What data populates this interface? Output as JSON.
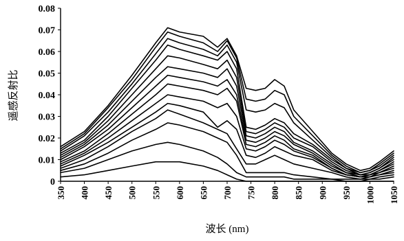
{
  "chart_data": {
    "type": "line",
    "title": "",
    "xlabel": "波长 (nm)",
    "ylabel": "遥感反射比",
    "xlim": [
      350,
      1050
    ],
    "ylim": [
      0,
      0.08
    ],
    "xticks": [
      "350",
      "400",
      "450",
      "500",
      "550",
      "600",
      "650",
      "700",
      "750",
      "800",
      "850",
      "900",
      "950",
      "1000",
      "1050"
    ],
    "yticks": [
      "0",
      "0.01",
      "0.02",
      "0.03",
      "0.04",
      "0.05",
      "0.06",
      "0.07",
      "0.08"
    ],
    "grid": false,
    "legend": "none",
    "colors": {
      "line": "#000000",
      "axis": "#000000"
    },
    "x": [
      350,
      400,
      450,
      500,
      550,
      575,
      600,
      650,
      680,
      700,
      720,
      740,
      760,
      780,
      800,
      820,
      840,
      880,
      920,
      950,
      980,
      1000,
      1020,
      1050
    ],
    "series": [
      {
        "values": [
          0.016,
          0.023,
          0.035,
          0.049,
          0.064,
          0.071,
          0.069,
          0.067,
          0.062,
          0.066,
          0.058,
          0.043,
          0.042,
          0.043,
          0.047,
          0.044,
          0.033,
          0.023,
          0.013,
          0.008,
          0.005,
          0.006,
          0.009,
          0.014
        ]
      },
      {
        "values": [
          0.015,
          0.022,
          0.034,
          0.047,
          0.062,
          0.069,
          0.067,
          0.064,
          0.06,
          0.065,
          0.057,
          0.038,
          0.037,
          0.038,
          0.042,
          0.04,
          0.03,
          0.021,
          0.012,
          0.007,
          0.004,
          0.005,
          0.008,
          0.013
        ]
      },
      {
        "values": [
          0.014,
          0.021,
          0.032,
          0.045,
          0.059,
          0.066,
          0.064,
          0.061,
          0.058,
          0.063,
          0.055,
          0.033,
          0.032,
          0.033,
          0.036,
          0.034,
          0.027,
          0.019,
          0.011,
          0.006,
          0.004,
          0.005,
          0.007,
          0.012
        ]
      },
      {
        "values": [
          0.013,
          0.019,
          0.03,
          0.043,
          0.056,
          0.063,
          0.061,
          0.058,
          0.056,
          0.06,
          0.052,
          0.025,
          0.024,
          0.026,
          0.029,
          0.027,
          0.022,
          0.017,
          0.01,
          0.006,
          0.003,
          0.004,
          0.006,
          0.011
        ]
      },
      {
        "values": [
          0.012,
          0.018,
          0.028,
          0.04,
          0.052,
          0.058,
          0.057,
          0.054,
          0.052,
          0.056,
          0.048,
          0.023,
          0.022,
          0.024,
          0.027,
          0.025,
          0.02,
          0.016,
          0.009,
          0.005,
          0.003,
          0.004,
          0.006,
          0.01
        ]
      },
      {
        "values": [
          0.011,
          0.017,
          0.026,
          0.037,
          0.048,
          0.053,
          0.052,
          0.05,
          0.048,
          0.052,
          0.044,
          0.021,
          0.02,
          0.022,
          0.025,
          0.023,
          0.018,
          0.014,
          0.008,
          0.004,
          0.003,
          0.003,
          0.005,
          0.009
        ]
      },
      {
        "values": [
          0.01,
          0.016,
          0.024,
          0.034,
          0.044,
          0.049,
          0.048,
          0.046,
          0.044,
          0.047,
          0.04,
          0.019,
          0.018,
          0.02,
          0.023,
          0.021,
          0.017,
          0.013,
          0.007,
          0.004,
          0.002,
          0.003,
          0.005,
          0.008
        ]
      },
      {
        "values": [
          0.009,
          0.014,
          0.022,
          0.031,
          0.04,
          0.045,
          0.044,
          0.042,
          0.04,
          0.043,
          0.037,
          0.017,
          0.016,
          0.018,
          0.021,
          0.019,
          0.015,
          0.012,
          0.006,
          0.003,
          0.002,
          0.003,
          0.004,
          0.007
        ]
      },
      {
        "values": [
          0.008,
          0.013,
          0.02,
          0.028,
          0.036,
          0.04,
          0.039,
          0.037,
          0.034,
          0.036,
          0.03,
          0.015,
          0.014,
          0.016,
          0.019,
          0.017,
          0.014,
          0.011,
          0.006,
          0.003,
          0.002,
          0.002,
          0.004,
          0.006
        ]
      },
      {
        "values": [
          0.007,
          0.012,
          0.018,
          0.025,
          0.032,
          0.036,
          0.035,
          0.032,
          0.025,
          0.028,
          0.024,
          0.012,
          0.011,
          0.013,
          0.016,
          0.014,
          0.012,
          0.01,
          0.005,
          0.003,
          0.002,
          0.002,
          0.003,
          0.005
        ]
      },
      {
        "values": [
          0.006,
          0.01,
          0.016,
          0.023,
          0.029,
          0.033,
          0.031,
          0.027,
          0.024,
          0.022,
          0.015,
          0.008,
          0.008,
          0.01,
          0.012,
          0.01,
          0.008,
          0.006,
          0.004,
          0.002,
          0.001,
          0.002,
          0.003,
          0.004
        ]
      },
      {
        "values": [
          0.005,
          0.008,
          0.013,
          0.019,
          0.024,
          0.027,
          0.026,
          0.023,
          0.02,
          0.018,
          0.012,
          0.004,
          0.004,
          0.004,
          0.004,
          0.004,
          0.003,
          0.002,
          0.001,
          0.001,
          0.001,
          0.001,
          0.002,
          0.003
        ]
      },
      {
        "values": [
          0.004,
          0.006,
          0.01,
          0.014,
          0.017,
          0.018,
          0.017,
          0.014,
          0.011,
          0.008,
          0.004,
          0.002,
          0.002,
          0.002,
          0.002,
          0.002,
          0.001,
          0.001,
          0.001,
          0.0,
          0.0,
          0.001,
          0.001,
          0.002
        ]
      },
      {
        "values": [
          0.002,
          0.003,
          0.005,
          0.007,
          0.009,
          0.009,
          0.009,
          0.007,
          0.005,
          0.003,
          0.001,
          0.0,
          0.0,
          0.0,
          0.0,
          0.0,
          0.0,
          0.0,
          0.0,
          0.0,
          0.0,
          0.0,
          0.0,
          0.0
        ]
      }
    ]
  }
}
